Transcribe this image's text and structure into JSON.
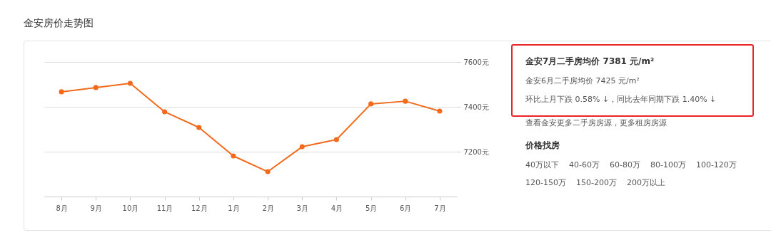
{
  "chart_data": {
    "type": "line",
    "title": "金安房价走势图",
    "categories": [
      "8月",
      "9月",
      "10月",
      "11月",
      "12月",
      "1月",
      "2月",
      "3月",
      "4月",
      "5月",
      "6月",
      "7月"
    ],
    "series": [
      {
        "color": "#f26b1d",
        "values": [
          7467,
          7486,
          7505,
          7378,
          7308,
          7181,
          7111,
          7222,
          7254,
          7413,
          7425,
          7381
        ]
      }
    ],
    "ylim": [
      7000,
      7600
    ],
    "yticks": [
      {
        "value": 7200,
        "label": "7200元"
      },
      {
        "value": 7400,
        "label": "7400元"
      },
      {
        "value": 7600,
        "label": "7600元"
      }
    ],
    "grid": "y",
    "marker": "circle",
    "line_style": "solid",
    "annotations": [
      "金安7月二手房均价 7381 元/m²",
      "金安6月二手房均价 7425 元/m²",
      "环比上月下跌 0.58% ↓，同比去年同期下跌 1.40% ↓",
      "查看金安更多二手房房源，更多租房房源",
      "价格找房",
      "40万以下",
      "40-60万",
      "60-80万",
      "80-100万",
      "100-120万",
      "120-150万",
      "150-200万",
      "200万以上"
    ]
  }
}
